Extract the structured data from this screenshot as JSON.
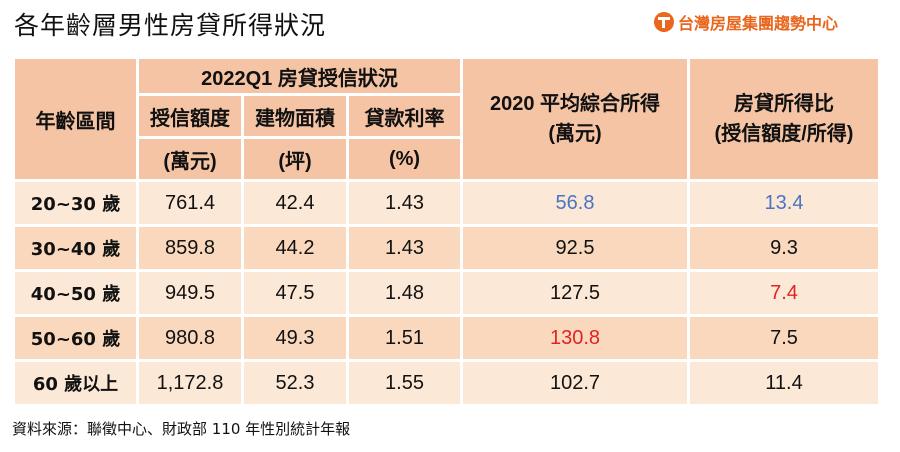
{
  "title": "各年齡層男性房貸所得狀況",
  "brand": {
    "name": "台灣房屋集團趨勢中心",
    "logo_icon": "taiwan-realty-logo-icon",
    "accent": "#e8661d"
  },
  "headers": {
    "age": "年齡區間",
    "group": "2022Q1 房貸授信狀況",
    "credit_line1": "授信額度",
    "credit_line2": "(萬元)",
    "area_line1": "建物面積",
    "area_line2": "(坪)",
    "rate_line1": "貸款利率",
    "rate_line2": "(%)",
    "income_line1": "2020 平均綜合所得",
    "income_line2": "(萬元)",
    "ratio_line1": "房貸所得比",
    "ratio_line2": "(授信額度/所得)"
  },
  "rows": [
    {
      "age": "20~30 歲",
      "credit": "761.4",
      "area": "42.4",
      "rate": "1.43",
      "income": "56.8",
      "ratio": "13.4"
    },
    {
      "age": "30~40 歲",
      "credit": "859.8",
      "area": "44.2",
      "rate": "1.43",
      "income": "92.5",
      "ratio": "9.3"
    },
    {
      "age": "40~50 歲",
      "credit": "949.5",
      "area": "47.5",
      "rate": "1.48",
      "income": "127.5",
      "ratio": "7.4"
    },
    {
      "age": "50~60 歲",
      "credit": "980.8",
      "area": "49.3",
      "rate": "1.51",
      "income": "130.8",
      "ratio": "7.5"
    },
    {
      "age": "60 歲以上",
      "credit": "1,172.8",
      "area": "52.3",
      "rate": "1.55",
      "income": "102.7",
      "ratio": "11.4"
    }
  ],
  "colors": {
    "header": "#f5c4a4",
    "row_light": "#fce8d6",
    "row_dark": "#f9d8bd",
    "highlight_blue": "#4a74c4",
    "highlight_red": "#e02424"
  },
  "source": "資料來源：聯徵中心、財政部 110 年性別統計年報"
}
